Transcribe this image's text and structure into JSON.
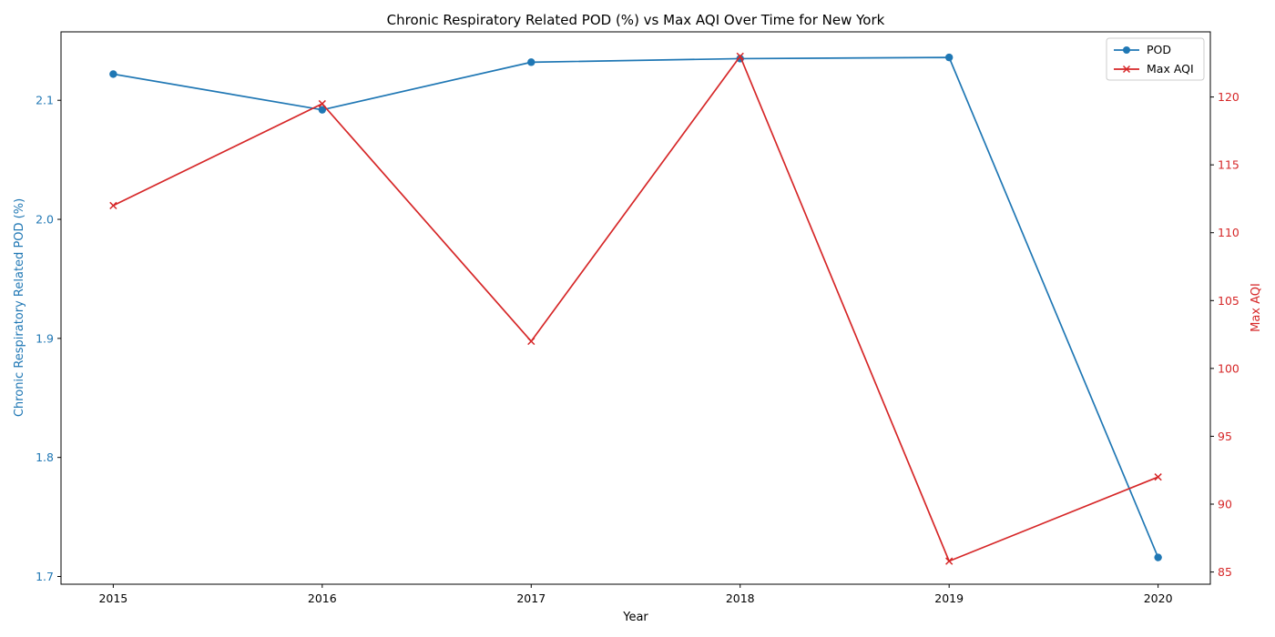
{
  "chart_data": {
    "type": "line",
    "title": "Chronic Respiratory Related POD (%) vs Max AQI Over Time for New York",
    "xlabel": "Year",
    "ylabel_left": "Chronic Respiratory Related POD (%)",
    "ylabel_right": "Max AQI",
    "x": [
      2015,
      2016,
      2017,
      2018,
      2019,
      2020
    ],
    "x_ticks": [
      "2015",
      "2016",
      "2017",
      "2018",
      "2019",
      "2020"
    ],
    "xlim": [
      2014.75,
      2020.25
    ],
    "y_left_ticks": [
      "1.7",
      "1.8",
      "1.9",
      "2.0",
      "2.1"
    ],
    "y_left_tick_values": [
      1.7,
      1.8,
      1.9,
      2.0,
      2.1
    ],
    "ylim_left": [
      1.6935,
      2.1575
    ],
    "y_right_ticks": [
      "85",
      "90",
      "95",
      "100",
      "105",
      "110",
      "115",
      "120"
    ],
    "y_right_tick_values": [
      85,
      90,
      95,
      100,
      105,
      110,
      115,
      120
    ],
    "ylim_right": [
      84.1,
      124.8
    ],
    "grid": false,
    "legend_position": "top-right",
    "series": [
      {
        "name": "POD",
        "axis": "left",
        "marker": "circle",
        "color": "#1f77b4",
        "values": [
          2.122,
          2.092,
          2.132,
          2.135,
          2.136,
          1.716
        ]
      },
      {
        "name": "Max AQI",
        "axis": "right",
        "marker": "x",
        "color": "#d62728",
        "values": [
          112.0,
          119.5,
          102.0,
          123.0,
          85.8,
          92.0
        ]
      }
    ]
  }
}
